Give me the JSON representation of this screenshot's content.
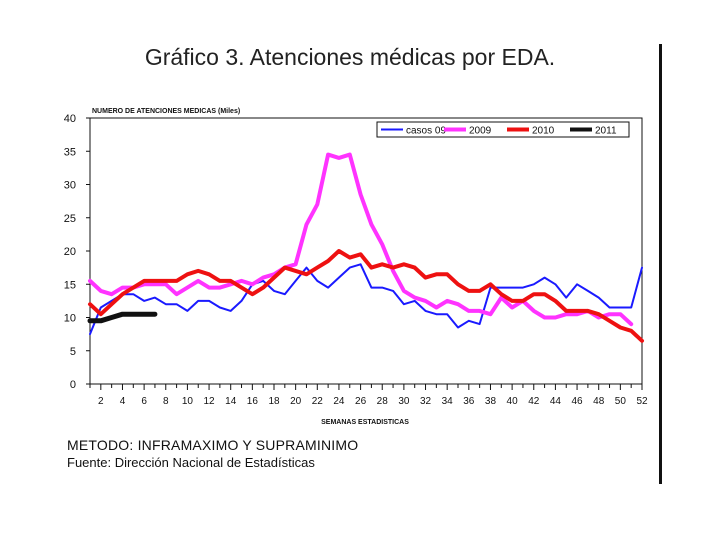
{
  "page": {
    "title": "Gráfico 3. Atenciones médicas por EDA.",
    "method_note": "METODO: INFRAMAXIMO Y SUPRAMINIMO",
    "source_note": "Fuente: Dirección Nacional de Estadísticas"
  },
  "chart_data": {
    "type": "line",
    "title": "NUMERO DE ATENCIONES MEDICAS (Miles)",
    "xlabel": "SEMANAS ESTADISTICAS",
    "ylabel": "",
    "xlim": [
      1,
      52
    ],
    "ylim": [
      0,
      40
    ],
    "yticks": [
      0,
      5,
      10,
      15,
      20,
      25,
      30,
      35,
      40
    ],
    "xticks": [
      2,
      4,
      6,
      8,
      10,
      12,
      14,
      16,
      18,
      20,
      22,
      24,
      26,
      28,
      30,
      32,
      34,
      36,
      38,
      40,
      42,
      44,
      46,
      48,
      50,
      52
    ],
    "grid": false,
    "legend_position": "top-right",
    "series": [
      {
        "name": "casos 09",
        "color": "#1a1aff",
        "width": 2,
        "x": [
          1,
          2,
          3,
          4,
          5,
          6,
          7,
          8,
          9,
          10,
          11,
          12,
          13,
          14,
          15,
          16,
          17,
          18,
          19,
          20,
          21,
          22,
          23,
          24,
          25,
          26,
          27,
          28,
          29,
          30,
          31,
          32,
          33,
          34,
          35,
          36,
          37,
          38,
          39,
          40,
          41,
          42,
          43,
          44,
          45,
          46,
          47,
          48,
          49,
          50,
          51,
          52
        ],
        "values": [
          7.5,
          11.5,
          12.5,
          13.5,
          13.5,
          12.5,
          13,
          12,
          12,
          11,
          12.5,
          12.5,
          11.5,
          11,
          12.5,
          15,
          15.5,
          14,
          13.5,
          15.5,
          17.5,
          15.5,
          14.5,
          16,
          17.5,
          18,
          14.5,
          14.5,
          14,
          12,
          12.5,
          11,
          10.5,
          10.5,
          8.5,
          9.5,
          9,
          14.5,
          14.5,
          14.5,
          14.5,
          15,
          16,
          15,
          13,
          15,
          14,
          13,
          11.5,
          11.5,
          11.5,
          17.5
        ]
      },
      {
        "name": "2009",
        "color": "#ff33ff",
        "width": 4,
        "x": [
          1,
          2,
          3,
          4,
          5,
          6,
          7,
          8,
          9,
          10,
          11,
          12,
          13,
          14,
          15,
          16,
          17,
          18,
          19,
          20,
          21,
          22,
          23,
          24,
          25,
          26,
          27,
          28,
          29,
          30,
          31,
          32,
          33,
          34,
          35,
          36,
          37,
          38,
          39,
          40,
          41,
          42,
          43,
          44,
          45,
          46,
          47,
          48,
          49,
          50,
          51
        ],
        "values": [
          15.5,
          14,
          13.5,
          14.5,
          14.5,
          15,
          15,
          15,
          13.5,
          14.5,
          15.5,
          14.5,
          14.5,
          15,
          15.5,
          15,
          16,
          16.5,
          17.5,
          18,
          24,
          27,
          34.5,
          34,
          34.5,
          28.5,
          24,
          21,
          17,
          14,
          13,
          12.5,
          11.5,
          12.5,
          12,
          11,
          11,
          10.5,
          13,
          11.5,
          12.5,
          11,
          10,
          10,
          10.5,
          10.5,
          11,
          10,
          10.5,
          10.5,
          9
        ]
      },
      {
        "name": "2010",
        "color": "#ee1111",
        "width": 4,
        "x": [
          1,
          2,
          3,
          4,
          5,
          6,
          7,
          8,
          9,
          10,
          11,
          12,
          13,
          14,
          15,
          16,
          17,
          18,
          19,
          20,
          21,
          22,
          23,
          24,
          25,
          26,
          27,
          28,
          29,
          30,
          31,
          32,
          33,
          34,
          35,
          36,
          37,
          38,
          39,
          40,
          41,
          42,
          43,
          44,
          45,
          46,
          47,
          48,
          49,
          50,
          51,
          52
        ],
        "values": [
          12,
          10.5,
          12,
          13.5,
          14.5,
          15.5,
          15.5,
          15.5,
          15.5,
          16.5,
          17,
          16.5,
          15.5,
          15.5,
          14.5,
          13.5,
          14.5,
          16,
          17.5,
          17,
          16.5,
          17.5,
          18.5,
          20,
          19,
          19.5,
          17.5,
          18,
          17.5,
          18,
          17.5,
          16,
          16.5,
          16.5,
          15,
          14,
          14,
          15,
          13.5,
          12.5,
          12.5,
          13.5,
          13.5,
          12.5,
          11,
          11,
          11,
          10.5,
          9.5,
          8.5,
          8,
          6.5
        ]
      },
      {
        "name": "2011",
        "color": "#111111",
        "width": 5,
        "x": [
          1,
          2,
          3,
          4,
          5,
          6,
          7
        ],
        "values": [
          9.5,
          9.5,
          10,
          10.5,
          10.5,
          10.5,
          10.5
        ]
      }
    ]
  }
}
